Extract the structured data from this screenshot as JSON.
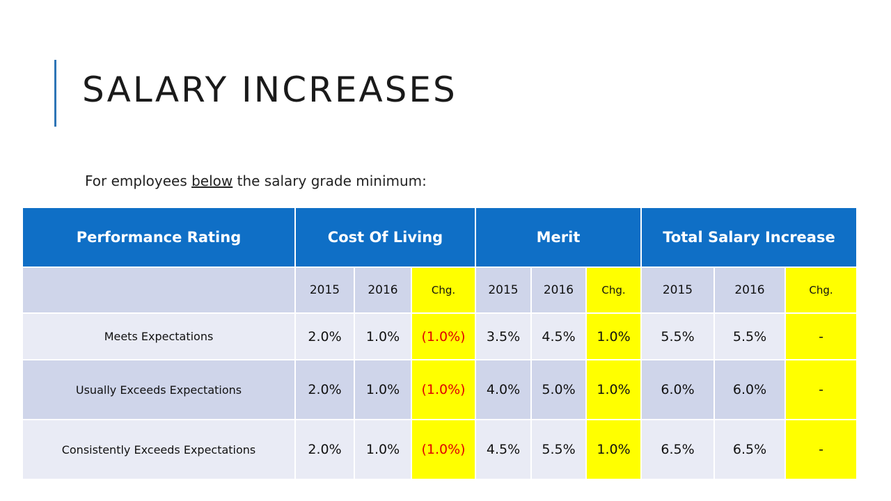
{
  "title": "SALARY INCREASES",
  "subtitle": {
    "before": "For employees ",
    "underlined": "below",
    "after": " the salary grade minimum:"
  },
  "table": {
    "headers": [
      "Performance Rating",
      "Cost Of Living",
      "Merit",
      "Total Salary Increase"
    ],
    "subheaders": [
      "",
      "2015",
      "2016",
      "Chg.",
      "2015",
      "2016",
      "Chg.",
      "2015",
      "2016",
      "Chg."
    ],
    "rows": [
      {
        "label": "Meets Expectations",
        "values": [
          "2.0%",
          "1.0%",
          "(1.0%)",
          "3.5%",
          "4.5%",
          "1.0%",
          "5.5%",
          "5.5%",
          "-"
        ]
      },
      {
        "label": "Usually Exceeds Expectations",
        "values": [
          "2.0%",
          "1.0%",
          "(1.0%)",
          "4.0%",
          "5.0%",
          "1.0%",
          "6.0%",
          "6.0%",
          "-"
        ]
      },
      {
        "label": "Consistently Exceeds Expectations",
        "values": [
          "2.0%",
          "1.0%",
          "(1.0%)",
          "4.5%",
          "5.5%",
          "1.0%",
          "6.5%",
          "6.5%",
          "-"
        ]
      }
    ]
  },
  "colors": {
    "header_bg": "#0f6fc6",
    "highlight": "#ffff00",
    "negative": "#e00000",
    "row_dark": "#cfd5ea",
    "row_light": "#e9ebf5",
    "accent_bar": "#2e75b6"
  }
}
